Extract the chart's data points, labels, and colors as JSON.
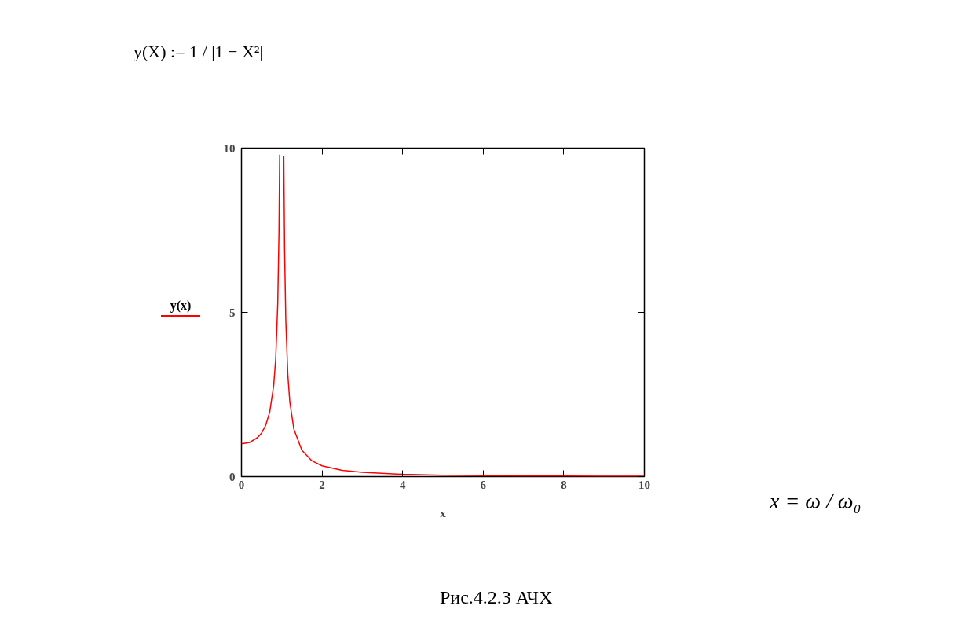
{
  "chart_data": {
    "type": "line",
    "annotations": [
      "y(X) := 1 / |1 − X²|",
      "x = ω / ω₀",
      "Рис.4.2.3 АЧХ"
    ],
    "xlabel": "x",
    "ylabel": "y(x)",
    "series": [
      {
        "color": "#ff0000",
        "x": [
          0,
          0.2,
          0.4,
          0.5,
          0.6,
          0.7,
          0.8,
          0.85,
          0.9,
          0.93,
          0.948,
          1.0,
          1.05,
          1.07,
          1.1,
          1.15,
          1.2,
          1.3,
          1.5,
          1.75,
          2,
          2.5,
          3,
          4,
          5,
          6,
          7,
          8,
          9,
          10
        ],
        "values": [
          1,
          1.04,
          1.19,
          1.33,
          1.56,
          1.96,
          2.78,
          3.6,
          5.26,
          7.4,
          9.8,
          null,
          9.76,
          6.9,
          4.76,
          3.1,
          2.27,
          1.45,
          0.8,
          0.48,
          0.33,
          0.19,
          0.13,
          0.07,
          0.04,
          0.03,
          0.02,
          0.02,
          0.01,
          0.01
        ]
      }
    ],
    "xlim": [
      0,
      10
    ],
    "xticks": [
      0,
      2,
      4,
      6,
      8,
      10
    ],
    "ylim": [
      0,
      10
    ],
    "yticks": [
      0,
      5,
      10
    ],
    "grid": false
  }
}
